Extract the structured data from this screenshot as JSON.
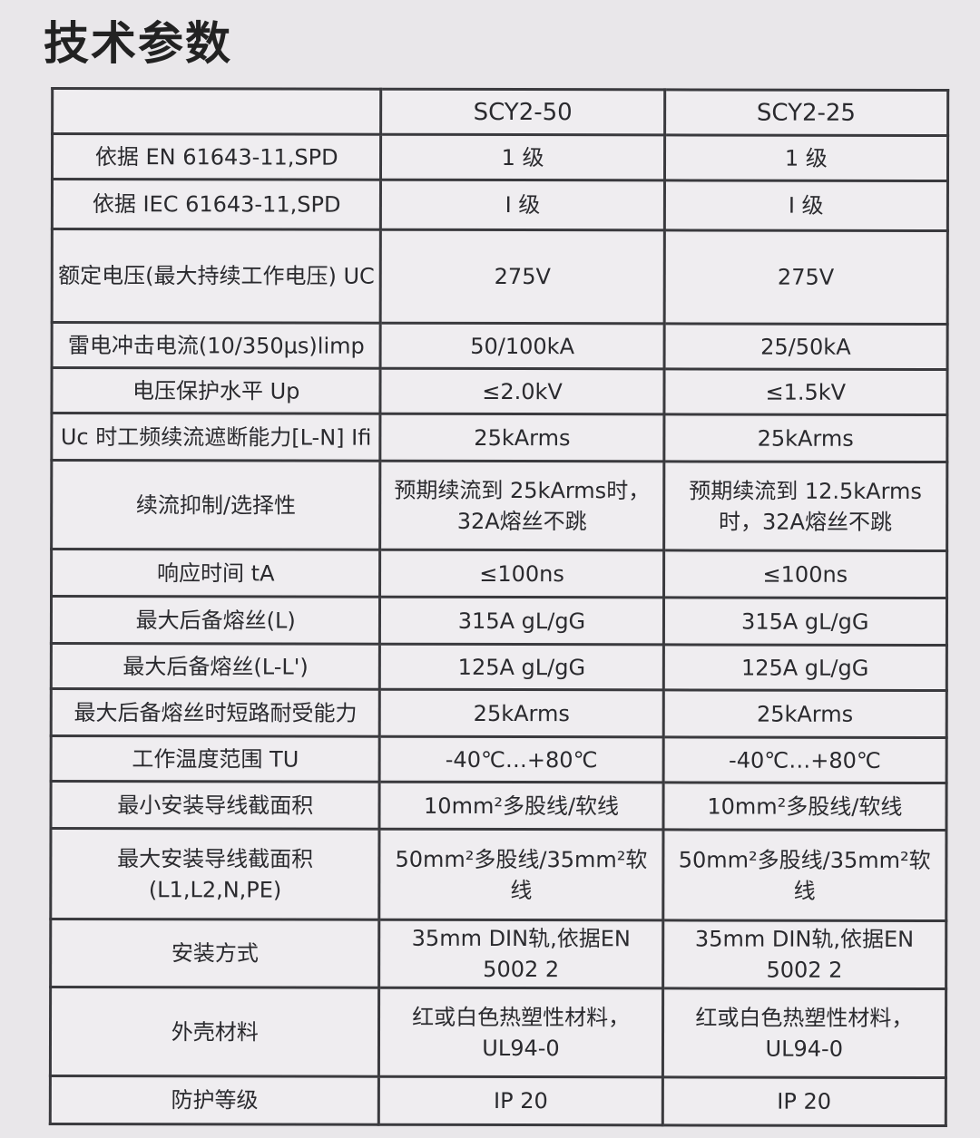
{
  "title": "技术参数",
  "table": {
    "headers": [
      "",
      "SCY2-50",
      "SCY2-25"
    ],
    "rows": [
      {
        "label": "依据 EN 61643-11,SPD",
        "v1": "1 级",
        "v2": "1 级"
      },
      {
        "label": "依据 IEC 61643-11,SPD",
        "v1": "I 级",
        "v2": "I 级"
      },
      {
        "label": "额定电压(最大持续工作电压) UC",
        "v1": "275V",
        "v2": "275V"
      },
      {
        "label": "雷电冲击电流(10/350μs)limp",
        "v1": "50/100kA",
        "v2": "25/50kA"
      },
      {
        "label": "电压保护水平 Up",
        "v1": "≤2.0kV",
        "v2": "≤1.5kV"
      },
      {
        "label": "Uc 时工频续流遮断能力[L-N] Ifi",
        "v1": "25kArms",
        "v2": "25kArms"
      },
      {
        "label": "续流抑制/选择性",
        "v1": "预期续流到 25kArms时，32A熔丝不跳",
        "v2": "预期续流到 12.5kArms时，32A熔丝不跳"
      },
      {
        "label": "响应时间 tA",
        "v1": "≤100ns",
        "v2": "≤100ns"
      },
      {
        "label": "最大后备熔丝(L)",
        "v1": "315A gL/gG",
        "v2": "315A gL/gG"
      },
      {
        "label": "最大后备熔丝(L-L')",
        "v1": "125A gL/gG",
        "v2": "125A gL/gG"
      },
      {
        "label": "最大后备熔丝时短路耐受能力",
        "v1": "25kArms",
        "v2": "25kArms"
      },
      {
        "label": "工作温度范围 TU",
        "v1": "-40℃…+80℃",
        "v2": "-40℃…+80℃"
      },
      {
        "label": "最小安装导线截面积",
        "v1": "10mm²多股线/软线",
        "v2": "10mm²多股线/软线"
      },
      {
        "label": "最大安装导线截面积 (L1,L2,N,PE)",
        "v1": "50mm²多股线/35mm²软线",
        "v2": "50mm²多股线/35mm²软线"
      },
      {
        "label": "安装方式",
        "v1": "35mm DIN轨,依据EN 5002 2",
        "v2": "35mm DIN轨,依据EN 5002 2"
      },
      {
        "label": "外壳材料",
        "v1": "红或白色热塑性材料，UL94-0",
        "v2": "红或白色热塑性材料，UL94-0"
      },
      {
        "label": "防护等级",
        "v1": "IP 20",
        "v2": "IP 20"
      }
    ]
  }
}
